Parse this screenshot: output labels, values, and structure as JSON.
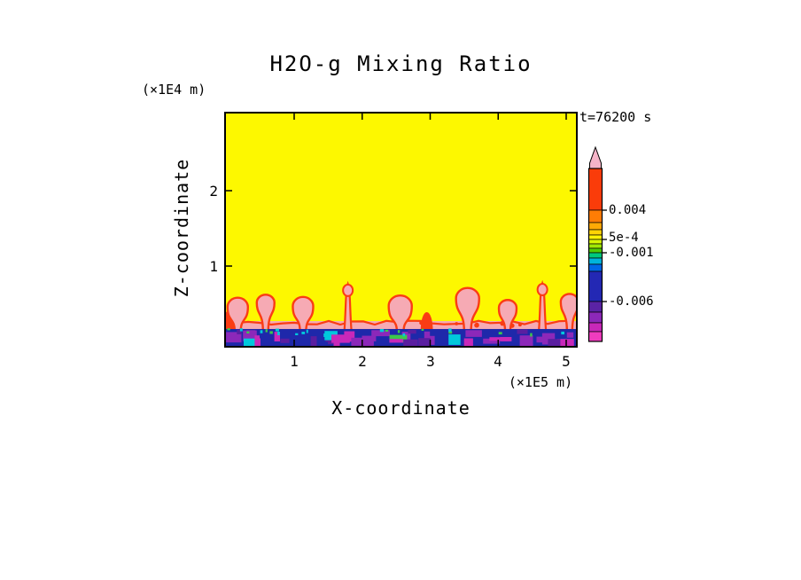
{
  "page": {
    "background": "#ffffff",
    "ink": "#000000"
  },
  "title": "H2O-g Mixing Ratio",
  "annotations": {
    "time_label": "t=76200 s",
    "y_unit_label": "(×1E4 m)",
    "x_unit_label": "(×1E5 m)"
  },
  "axes": {
    "x": {
      "label": "X-coordinate",
      "ticks": [
        "1",
        "2",
        "3",
        "4",
        "5"
      ]
    },
    "z": {
      "label": "Z-coordinate",
      "ticks": [
        "1",
        "2"
      ]
    }
  },
  "colorbar": {
    "labels": [
      "0.004",
      "5e-4",
      "-0.001",
      "-0.006"
    ],
    "arrow_color": "#f5b4c8",
    "tick_offsets": [
      47,
      80,
      95,
      150
    ],
    "segments": [
      {
        "color": "#fa3c0a",
        "h": 47
      },
      {
        "color": "#ff7d05",
        "h": 14
      },
      {
        "color": "#ffaa05",
        "h": 8
      },
      {
        "color": "#ffd305",
        "h": 6
      },
      {
        "color": "#fff305",
        "h": 5
      },
      {
        "color": "#d8f505",
        "h": 5
      },
      {
        "color": "#a0e805",
        "h": 5
      },
      {
        "color": "#50cc05",
        "h": 5
      },
      {
        "color": "#00c87d",
        "h": 6
      },
      {
        "color": "#00b4dc",
        "h": 7
      },
      {
        "color": "#0066e6",
        "h": 8
      },
      {
        "color": "#2328b4",
        "h": 34
      },
      {
        "color": "#5a23a5",
        "h": 12
      },
      {
        "color": "#8c28b9",
        "h": 12
      },
      {
        "color": "#c828b9",
        "h": 10
      },
      {
        "color": "#f03cbe",
        "h": 11
      }
    ]
  },
  "chart_data": {
    "type": "heatmap",
    "title": "H2O-g Mixing Ratio",
    "xlabel": "X-coordinate (×1E5 m)",
    "ylabel": "Z-coordinate (×1E4 m)",
    "x_ticks": [
      1,
      2,
      3,
      4,
      5
    ],
    "z_ticks": [
      1,
      2
    ],
    "x_range": [
      0,
      5.15
    ],
    "z_range": [
      0,
      3.05
    ],
    "time_s": 76200,
    "levels": [
      -0.006,
      -0.001,
      0.0005,
      0.004
    ],
    "level_labels": [
      "-0.006",
      "-0.001",
      "5e-4",
      "0.004"
    ],
    "legend_position": "right",
    "grid": false,
    "field": {
      "background_value_color": "#fdf800",
      "description": "Uniform high H2O-g mixing ratio (yellow) filling the domain above a thin surface layer; red/pink convective plumes rise from a pink band capping a dark navy strip mottled with purple, magenta, green and cyan patches at the bottom boundary.",
      "surface": {
        "navy_color": "#1e28aa",
        "navy_top_z": 0.165,
        "pink_band_color": "#f6aab4",
        "pink_band_top_z": 0.27,
        "patch_colors": [
          "#5a1ea0",
          "#8c28b9",
          "#c828b9",
          "#3cc84b",
          "#00c8dc"
        ]
      },
      "plume_fill": "#f6aab4",
      "plume_edge": "#fa3c14",
      "plumes": [
        {
          "x": 0.04,
          "top_z": 0.4,
          "head_w": 0.18,
          "style": "bump"
        },
        {
          "x": 0.17,
          "top_z": 0.58,
          "head_w": 0.3,
          "style": "mushroom"
        },
        {
          "x": 0.58,
          "top_z": 0.62,
          "head_w": 0.26,
          "style": "mushroom"
        },
        {
          "x": 1.13,
          "top_z": 0.59,
          "head_w": 0.3,
          "style": "mushroom"
        },
        {
          "x": 1.79,
          "top_z": 0.76,
          "head_w": 0.14,
          "style": "spike"
        },
        {
          "x": 2.56,
          "top_z": 0.61,
          "head_w": 0.34,
          "style": "mushroom"
        },
        {
          "x": 2.95,
          "top_z": 0.38,
          "head_w": 0.16,
          "style": "bump"
        },
        {
          "x": 3.55,
          "top_z": 0.71,
          "head_w": 0.34,
          "style": "mushroom"
        },
        {
          "x": 4.14,
          "top_z": 0.55,
          "head_w": 0.26,
          "style": "mushroom"
        },
        {
          "x": 4.65,
          "top_z": 0.77,
          "head_w": 0.12,
          "style": "spike"
        },
        {
          "x": 5.05,
          "top_z": 0.63,
          "head_w": 0.26,
          "style": "mushroom"
        }
      ]
    }
  }
}
